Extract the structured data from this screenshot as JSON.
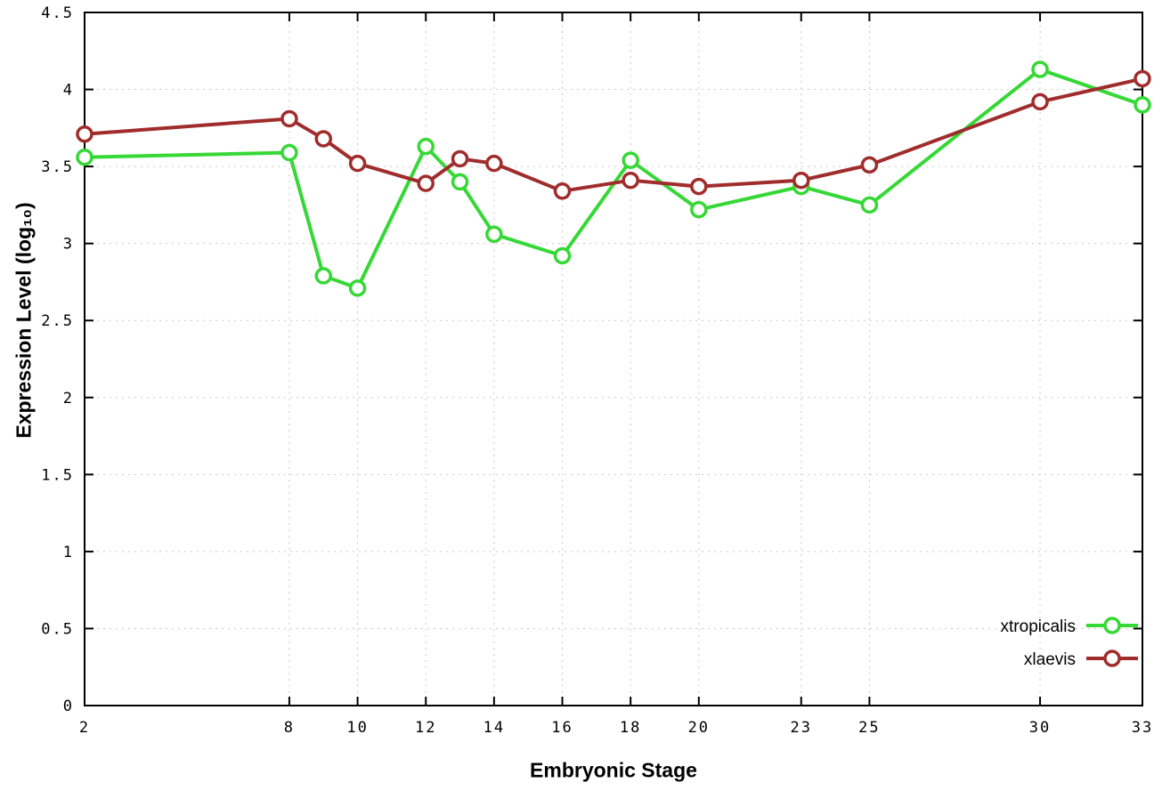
{
  "chart_data": {
    "type": "line",
    "title": "",
    "xlabel": "Embryonic Stage",
    "ylabel": "Expression Level (log₁₀)",
    "x": [
      2,
      8,
      9,
      10,
      12,
      13,
      14,
      16,
      18,
      20,
      23,
      25,
      30,
      33
    ],
    "series": [
      {
        "name": "xtropicalis",
        "color": "#35d835",
        "values": [
          3.56,
          3.59,
          2.79,
          2.71,
          3.63,
          3.4,
          3.06,
          2.92,
          3.54,
          3.22,
          3.37,
          3.25,
          4.13,
          3.9
        ]
      },
      {
        "name": "xlaevis",
        "color": "#a02c2c",
        "values": [
          3.71,
          3.81,
          3.68,
          3.52,
          3.39,
          3.55,
          3.52,
          3.34,
          3.41,
          3.37,
          3.41,
          3.51,
          3.92,
          4.07
        ]
      }
    ],
    "xticks": [
      2,
      8,
      10,
      12,
      14,
      16,
      18,
      20,
      23,
      25,
      30,
      33
    ],
    "yticks": [
      0,
      0.5,
      1,
      1.5,
      2,
      2.5,
      3,
      3.5,
      4,
      4.5
    ],
    "xlim": [
      2,
      33
    ],
    "ylim": [
      0,
      4.5
    ],
    "grid": true,
    "legend_position": "bottom-right",
    "legend": [
      "xtropicalis",
      "xlaevis"
    ]
  },
  "style": {
    "background": "#ffffff",
    "grid_color": "#c9c9c9",
    "axis_color": "#000000",
    "marker_fill": "#ffffff"
  }
}
